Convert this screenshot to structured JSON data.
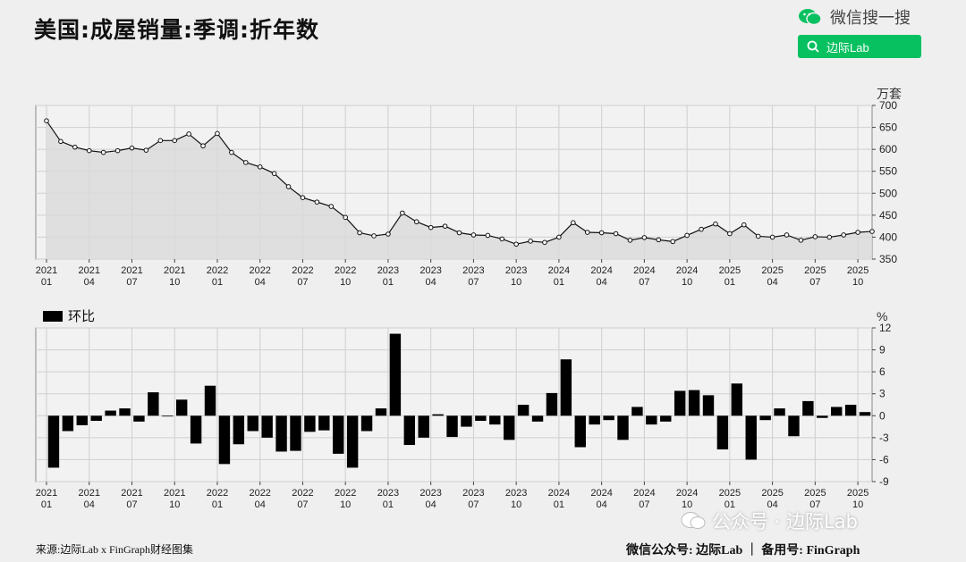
{
  "header": {
    "title": "美国:成屋销量:季调:折年数",
    "wechat_search_label": "微信搜一搜",
    "search_button_label": "边际Lab"
  },
  "footer": {
    "source": "来源:边际Lab x FinGraph财经图集",
    "account": "微信公众号: 边际Lab ｜ 备用号: FinGraph",
    "watermark": "公众号 · 边际Lab"
  },
  "chart_data": [
    {
      "type": "area",
      "unit_label": "万套",
      "ylim": [
        350,
        700
      ],
      "yticks": [
        350,
        400,
        450,
        500,
        550,
        600,
        650,
        700
      ],
      "grid": true,
      "x_tick_labels": [
        [
          "2021",
          "01"
        ],
        [
          "2021",
          "04"
        ],
        [
          "2021",
          "07"
        ],
        [
          "2021",
          "10"
        ],
        [
          "2022",
          "01"
        ],
        [
          "2022",
          "04"
        ],
        [
          "2022",
          "07"
        ],
        [
          "2022",
          "10"
        ],
        [
          "2023",
          "01"
        ],
        [
          "2023",
          "04"
        ],
        [
          "2023",
          "07"
        ],
        [
          "2023",
          "10"
        ],
        [
          "2024",
          "01"
        ],
        [
          "2024",
          "04"
        ],
        [
          "2024",
          "07"
        ],
        [
          "2024",
          "10"
        ],
        [
          "2025",
          "01"
        ],
        [
          "2025",
          "04"
        ],
        [
          "2025",
          "07"
        ],
        [
          "2025",
          "10"
        ]
      ],
      "x": [
        "2021-01",
        "2021-02",
        "2021-03",
        "2021-04",
        "2021-05",
        "2021-06",
        "2021-07",
        "2021-08",
        "2021-09",
        "2021-10",
        "2021-11",
        "2021-12",
        "2022-01",
        "2022-02",
        "2022-03",
        "2022-04",
        "2022-05",
        "2022-06",
        "2022-07",
        "2022-08",
        "2022-09",
        "2022-10",
        "2022-11",
        "2022-12",
        "2023-01",
        "2023-02",
        "2023-03",
        "2023-04",
        "2023-05",
        "2023-06",
        "2023-07",
        "2023-08",
        "2023-09",
        "2023-10",
        "2023-11",
        "2023-12",
        "2024-01",
        "2024-02",
        "2024-03",
        "2024-04",
        "2024-05",
        "2024-06",
        "2024-07",
        "2024-08",
        "2024-09",
        "2024-10",
        "2024-11",
        "2024-12",
        "2025-01",
        "2025-02",
        "2025-03",
        "2025-04",
        "2025-05",
        "2025-06",
        "2025-07",
        "2025-08",
        "2025-09",
        "2025-10",
        "2025-11"
      ],
      "values": [
        665,
        618,
        605,
        597,
        593,
        597,
        603,
        598,
        620,
        620,
        635,
        608,
        636,
        593,
        570,
        560,
        545,
        515,
        490,
        480,
        470,
        445,
        410,
        403,
        407,
        455,
        435,
        422,
        425,
        410,
        405,
        404,
        396,
        384,
        391,
        388,
        400,
        433,
        411,
        410,
        408,
        393,
        399,
        394,
        390,
        404,
        418,
        430,
        408,
        428,
        402,
        400,
        405,
        393,
        401,
        400,
        405,
        411,
        413
      ]
    },
    {
      "type": "bar",
      "legend": "环比",
      "unit_label": "%",
      "ylim": [
        -9,
        12
      ],
      "yticks": [
        -9,
        -6,
        -3,
        0,
        3,
        6,
        9,
        12
      ],
      "grid": true,
      "x_tick_labels": [
        [
          "2021",
          "01"
        ],
        [
          "2021",
          "04"
        ],
        [
          "2021",
          "07"
        ],
        [
          "2021",
          "10"
        ],
        [
          "2022",
          "01"
        ],
        [
          "2022",
          "04"
        ],
        [
          "2022",
          "07"
        ],
        [
          "2022",
          "10"
        ],
        [
          "2023",
          "01"
        ],
        [
          "2023",
          "04"
        ],
        [
          "2023",
          "07"
        ],
        [
          "2023",
          "10"
        ],
        [
          "2024",
          "01"
        ],
        [
          "2024",
          "04"
        ],
        [
          "2024",
          "07"
        ],
        [
          "2024",
          "10"
        ],
        [
          "2025",
          "01"
        ],
        [
          "2025",
          "04"
        ],
        [
          "2025",
          "07"
        ],
        [
          "2025",
          "10"
        ]
      ],
      "values": [
        -7.1,
        -2.1,
        -1.3,
        -0.7,
        0.7,
        1.0,
        -0.8,
        3.2,
        0.0,
        2.2,
        -3.8,
        4.1,
        -6.6,
        -3.9,
        -2.1,
        -3.0,
        -4.9,
        -4.8,
        -2.2,
        -2.0,
        -5.2,
        -7.1,
        -2.1,
        1.0,
        11.2,
        -4.0,
        -3.0,
        0.2,
        -2.9,
        -1.5,
        -0.7,
        -1.2,
        -3.3,
        1.5,
        -0.8,
        3.1,
        7.7,
        -4.3,
        -1.2,
        -0.6,
        -3.3,
        1.2,
        -1.2,
        -0.8,
        3.4,
        3.5,
        2.8,
        -4.6,
        4.4,
        -6.0,
        -0.6,
        1.0,
        -2.8,
        2.0,
        -0.3,
        1.2,
        1.5,
        0.5
      ]
    }
  ]
}
